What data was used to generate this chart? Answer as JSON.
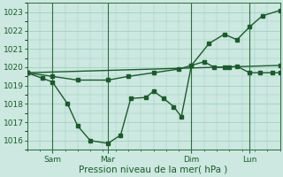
{
  "bg_color": "#cce8e0",
  "grid_color": "#99ccbb",
  "line_color": "#1a5c2a",
  "vline_color": "#2d6e3e",
  "ylim": [
    1015.5,
    1023.5
  ],
  "xlim": [
    0.0,
    10.0
  ],
  "yticks": [
    1016,
    1017,
    1018,
    1019,
    1020,
    1021,
    1022,
    1023
  ],
  "xlabel": "Pression niveau de la mer( hPa )",
  "xtick_labels": [
    "Sam",
    "Mar",
    "Dim",
    "Lun"
  ],
  "xtick_positions": [
    1.0,
    3.2,
    6.5,
    8.8
  ],
  "vline_x": [
    1.0,
    3.2,
    6.5,
    8.8
  ],
  "line1_x": [
    0.0,
    10.0
  ],
  "line1_y": [
    1019.7,
    1020.1
  ],
  "line2_x": [
    0.0,
    0.6,
    1.0,
    1.6,
    2.0,
    2.5,
    3.2,
    3.7,
    4.1,
    4.7,
    5.0,
    5.4,
    5.8,
    6.1,
    6.5,
    7.0,
    7.4,
    7.8,
    8.0,
    8.3,
    8.8,
    9.2,
    9.7,
    10.0
  ],
  "line2_y": [
    1019.7,
    1019.4,
    1019.2,
    1018.0,
    1016.8,
    1016.0,
    1015.85,
    1016.3,
    1018.3,
    1018.35,
    1018.7,
    1018.3,
    1017.85,
    1017.3,
    1020.1,
    1020.3,
    1020.0,
    1020.0,
    1020.0,
    1020.05,
    1019.7,
    1019.7,
    1019.7,
    1019.7
  ],
  "line3_x": [
    0.0,
    1.0,
    2.0,
    3.2,
    4.0,
    5.0,
    6.0,
    6.5,
    7.2,
    7.8,
    8.3,
    8.8,
    9.3,
    10.0
  ],
  "line3_y": [
    1019.7,
    1019.5,
    1019.3,
    1019.3,
    1019.5,
    1019.7,
    1019.9,
    1020.1,
    1021.3,
    1021.8,
    1021.5,
    1022.2,
    1022.8,
    1023.1
  ],
  "marker_size": 2.5,
  "linewidth": 1.0
}
